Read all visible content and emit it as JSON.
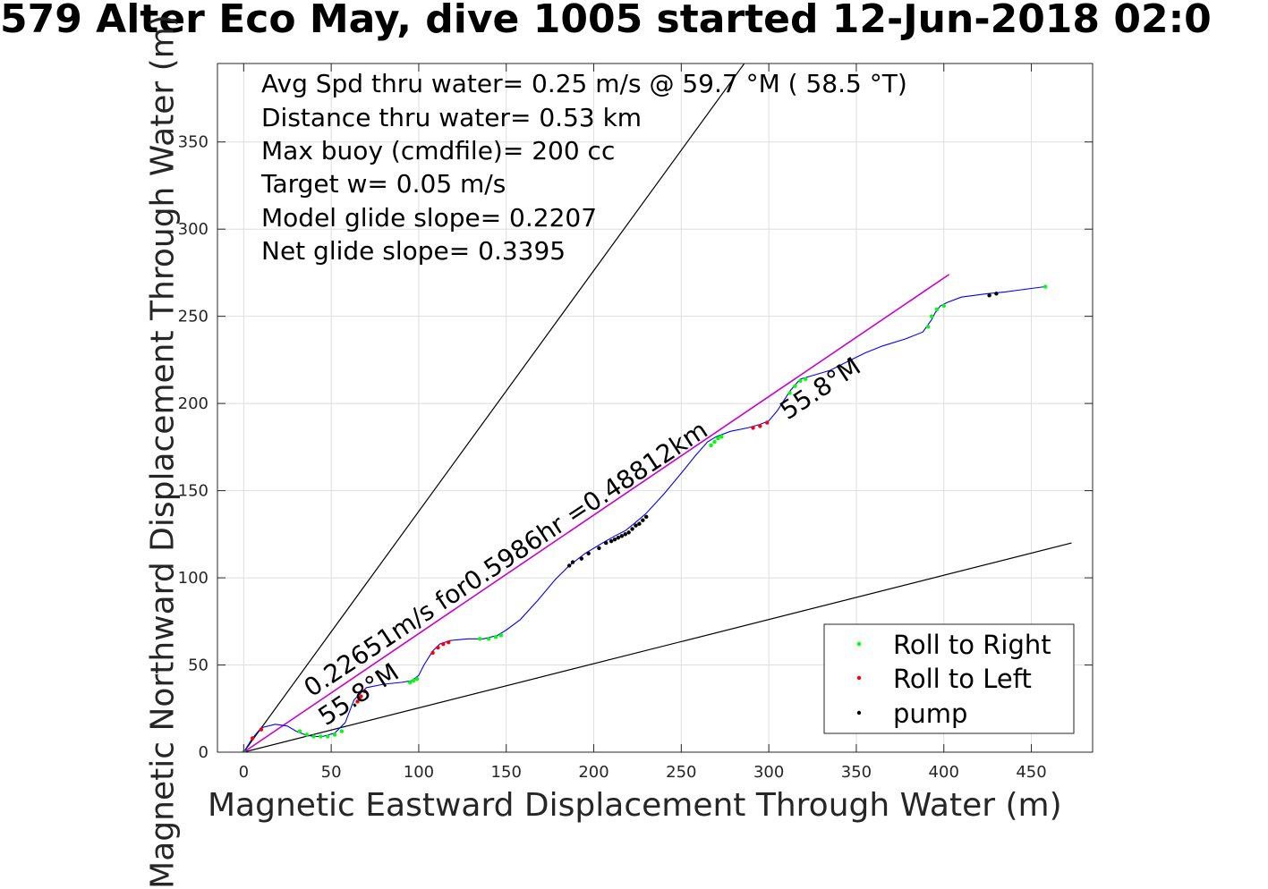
{
  "chart_data": {
    "type": "line",
    "title": "579 Alter Eco May, dive 1005 started 12-Jun-2018 02:0",
    "xlabel": "Magnetic Eastward Displacement Through Water (m)",
    "ylabel": "Magnetic Northward Displacement Through Water (m)",
    "xlim": [
      -15,
      485
    ],
    "ylim": [
      0,
      395
    ],
    "xticks": [
      0,
      50,
      100,
      150,
      200,
      250,
      300,
      350,
      400,
      450
    ],
    "yticks": [
      0,
      50,
      100,
      150,
      200,
      250,
      300,
      350
    ],
    "grid": true,
    "legend_position": "bottom-right",
    "annotations": [
      "Avg Spd thru water=  0.25 m/s @  59.7 °M ( 58.5 °T)",
      "Distance thru water=  0.53 km",
      "Max buoy (cmdfile)= 200 cc",
      "Target w= 0.05 m/s",
      "Model glide slope= 0.2207",
      "Net glide slope= 0.3395"
    ],
    "track_label": "0.22651m/s for0.5986hr =0.48812km",
    "heading_labels": [
      "55.8°M",
      "55.8°M"
    ],
    "track_line": {
      "x": [
        0,
        403
      ],
      "y": [
        0,
        274
      ],
      "color": "#cc00cc"
    },
    "glide_lines": [
      {
        "x": [
          0,
          286
        ],
        "y": [
          0,
          395
        ],
        "color": "#000000"
      },
      {
        "x": [
          0,
          473
        ],
        "y": [
          0,
          120
        ],
        "color": "#000000"
      }
    ],
    "series": [
      {
        "name": "",
        "color": "#0000ff",
        "x": [
          0,
          5,
          10,
          18,
          25,
          30,
          35,
          40,
          45,
          52,
          58,
          63,
          70,
          80,
          90,
          96,
          100,
          103,
          108,
          112,
          118,
          128,
          137,
          145,
          150,
          158,
          168,
          178,
          186,
          195,
          205,
          212,
          218,
          223,
          230,
          240,
          250,
          258,
          265,
          270,
          278,
          288,
          295,
          300,
          305,
          312,
          318,
          325,
          335,
          345,
          355,
          365,
          378,
          388,
          393,
          395,
          398,
          402,
          410,
          425,
          435,
          450,
          458
        ],
        "y": [
          0,
          8,
          14,
          16,
          15,
          12,
          10,
          9,
          9,
          11,
          17,
          30,
          37,
          39,
          40,
          41,
          44,
          50,
          58,
          62,
          64,
          65,
          65,
          67,
          70,
          76,
          87,
          99,
          107,
          114,
          120,
          124,
          127,
          131,
          137,
          148,
          160,
          170,
          178,
          181,
          184,
          186,
          188,
          190,
          196,
          207,
          214,
          216,
          219,
          224,
          229,
          233,
          237,
          241,
          248,
          252,
          256,
          258,
          261,
          263,
          264,
          266,
          267
        ]
      },
      {
        "name": "Roll to Right",
        "color": "#00ff00",
        "marker": "dot",
        "x": [
          0,
          32,
          36,
          40,
          44,
          48,
          52,
          56,
          95,
          97,
          99,
          135,
          140,
          144,
          147,
          267,
          269,
          271,
          273,
          312,
          315,
          318,
          321,
          391,
          393,
          396,
          400,
          458
        ],
        "y": [
          0,
          12,
          10,
          9,
          9,
          9,
          10,
          12,
          40,
          41,
          42,
          65,
          65,
          66,
          67,
          176,
          178,
          180,
          181,
          206,
          210,
          213,
          214,
          244,
          250,
          254,
          256,
          267
        ]
      },
      {
        "name": "Roll to Left",
        "color": "#ff0000",
        "marker": "dot",
        "x": [
          5,
          10,
          65,
          67,
          69,
          108,
          111,
          114,
          117,
          291,
          295,
          299
        ],
        "y": [
          8,
          13,
          29,
          32,
          35,
          57,
          60,
          62,
          63,
          186,
          187,
          189
        ]
      },
      {
        "name": "pump",
        "color": "#000000",
        "marker": "dot",
        "x": [
          186,
          188,
          193,
          197,
          203,
          207,
          210,
          212,
          214,
          216,
          218,
          220,
          222,
          224,
          226,
          228,
          230,
          426,
          430
        ],
        "y": [
          107,
          109,
          111,
          114,
          117,
          120,
          121,
          122,
          123,
          124,
          125,
          126,
          128,
          130,
          131,
          133,
          135,
          262,
          263
        ]
      }
    ]
  }
}
